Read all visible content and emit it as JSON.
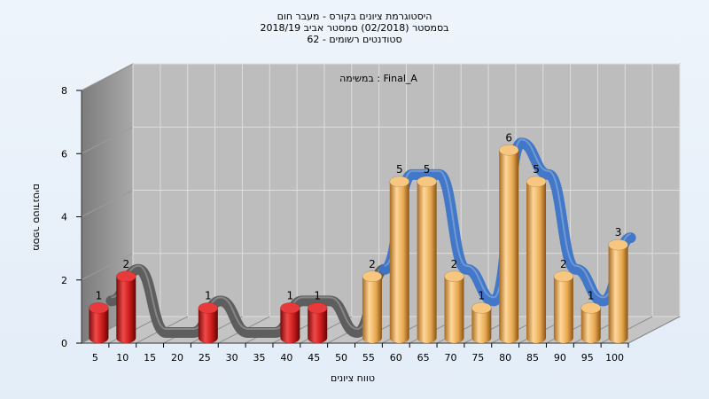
{
  "chart_data": {
    "type": "bar",
    "title_lines": [
      "היסטוגרמת ציונים בקורס - מעבר חום",
      "בסמסטר  (02/2018)  סמסטר אביב 2018/19",
      "סטודנטים רשומים - 62"
    ],
    "task_label": "Final_A : במשימה",
    "xlabel": "טווח ציונים",
    "ylabel": "מספר סטודנטים",
    "ylim": [
      0,
      8
    ],
    "yticks": [
      "0",
      "2",
      "4",
      "6",
      "8"
    ],
    "categories": [
      "5",
      "10",
      "15",
      "20",
      "25",
      "30",
      "35",
      "40",
      "45",
      "50",
      "55",
      "60",
      "65",
      "70",
      "75",
      "80",
      "85",
      "90",
      "95",
      "100"
    ],
    "values": [
      1,
      2,
      0,
      0,
      1,
      0,
      0,
      1,
      1,
      0,
      2,
      5,
      5,
      2,
      1,
      6,
      5,
      2,
      1,
      3
    ],
    "bar_colors": {
      "fail": "#d42424",
      "pass": "#e8a84c"
    },
    "fail_below": 55,
    "curve_colors": {
      "fail": "#595959",
      "pass": "#3b74c7"
    },
    "grid": true
  }
}
